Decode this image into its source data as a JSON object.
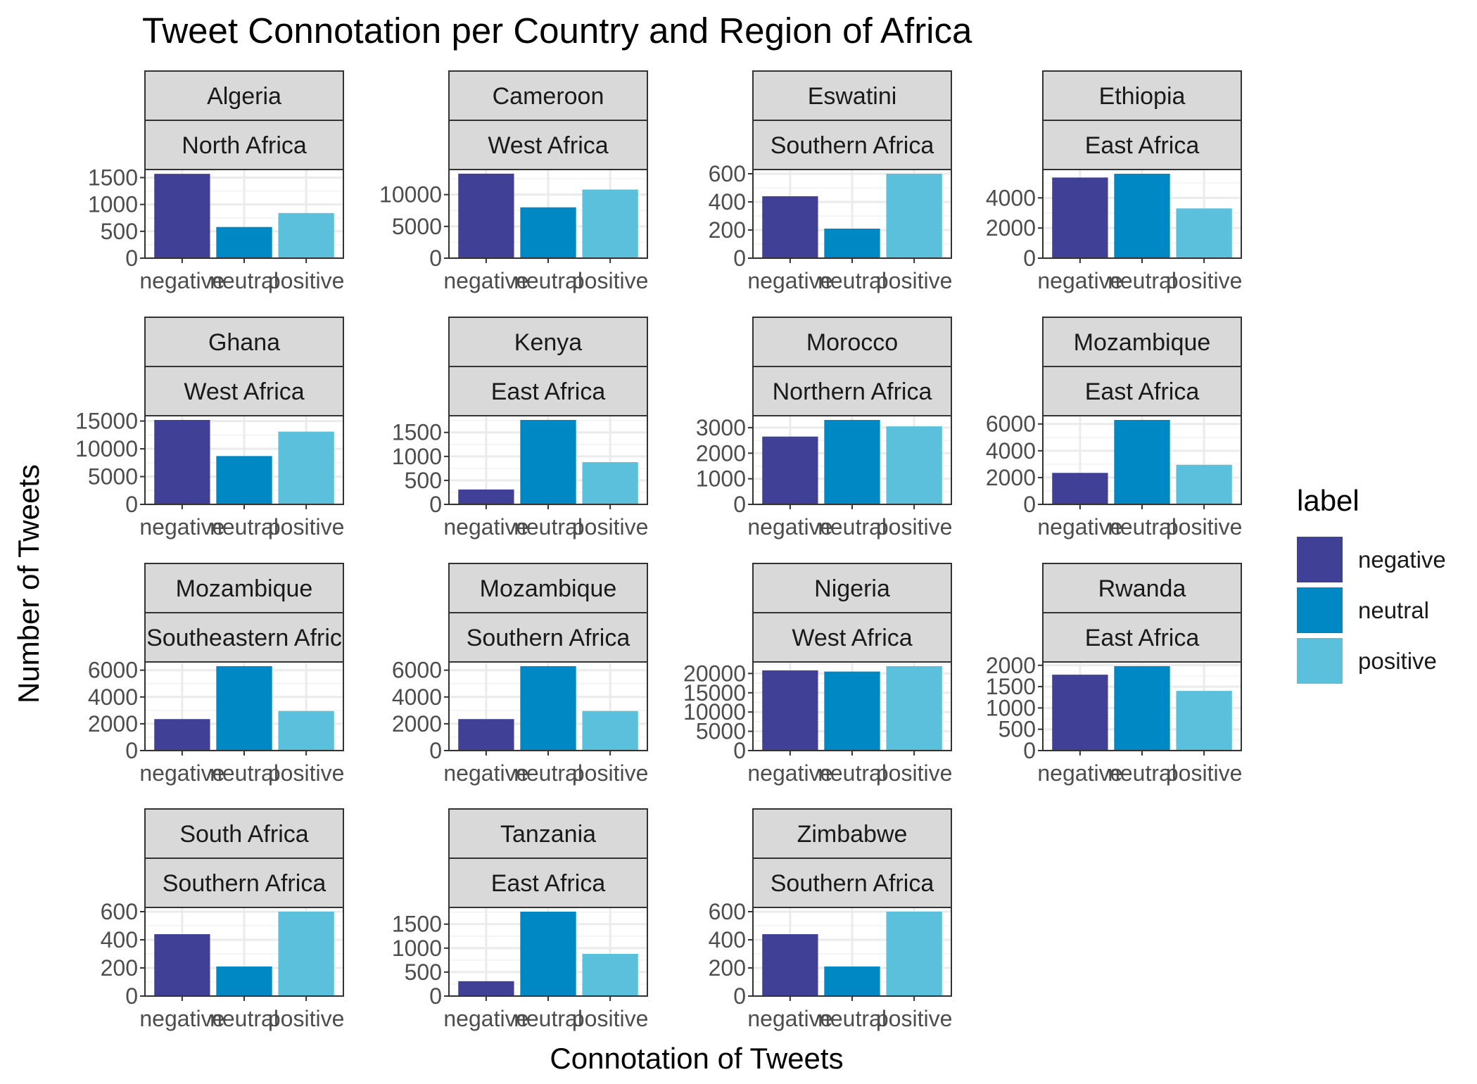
{
  "chart_data": {
    "type": "bar",
    "title": "Tweet Connotation per Country and Region of Africa",
    "xlabel": "Connotation of Tweets",
    "ylabel": "Number of Tweets",
    "categories": [
      "negative",
      "neutral",
      "positive"
    ],
    "grid": true,
    "legend": {
      "title": "label",
      "position": "right",
      "entries": [
        "negative",
        "neutral",
        "positive"
      ]
    },
    "colors": {
      "negative": "#404096",
      "neutral": "#0088c4",
      "positive": "#5bc0db"
    },
    "panels": [
      {
        "country": "Algeria",
        "region": "North Africa",
        "values": [
          1570,
          580,
          840
        ],
        "ylim": [
          0,
          1650
        ],
        "yticks": [
          0,
          500,
          1000,
          1500
        ]
      },
      {
        "country": "Cameroon",
        "region": "West Africa",
        "values": [
          13300,
          8000,
          10800
        ],
        "ylim": [
          0,
          13950
        ],
        "yticks": [
          0,
          5000,
          10000
        ]
      },
      {
        "country": "Eswatini",
        "region": "Southern Africa",
        "values": [
          440,
          210,
          600
        ],
        "ylim": [
          0,
          630
        ],
        "yticks": [
          0,
          200,
          400,
          600
        ]
      },
      {
        "country": "Ethiopia",
        "region": "East Africa",
        "values": [
          5350,
          5600,
          3300
        ],
        "ylim": [
          0,
          5880
        ],
        "yticks": [
          0,
          2000,
          4000
        ]
      },
      {
        "country": "Ghana",
        "region": "West Africa",
        "values": [
          15200,
          8700,
          13100
        ],
        "ylim": [
          0,
          15960
        ],
        "yticks": [
          0,
          5000,
          10000,
          15000
        ]
      },
      {
        "country": "Kenya",
        "region": "East Africa",
        "values": [
          310,
          1760,
          880
        ],
        "ylim": [
          0,
          1848
        ],
        "yticks": [
          0,
          500,
          1000,
          1500
        ]
      },
      {
        "country": "Morocco",
        "region": "Northern Africa",
        "values": [
          2650,
          3300,
          3050
        ],
        "ylim": [
          0,
          3465
        ],
        "yticks": [
          0,
          1000,
          2000,
          3000
        ]
      },
      {
        "country": "Mozambique",
        "region": "East Africa",
        "values": [
          2350,
          6300,
          2950
        ],
        "ylim": [
          0,
          6615
        ],
        "yticks": [
          0,
          2000,
          4000,
          6000
        ]
      },
      {
        "country": "Mozambique",
        "region": "Southeastern Afric",
        "values": [
          2350,
          6300,
          2950
        ],
        "ylim": [
          0,
          6615
        ],
        "yticks": [
          0,
          2000,
          4000,
          6000
        ]
      },
      {
        "country": "Mozambique",
        "region": "Southern Africa",
        "values": [
          2350,
          6300,
          2950
        ],
        "ylim": [
          0,
          6615
        ],
        "yticks": [
          0,
          2000,
          4000,
          6000
        ]
      },
      {
        "country": "Nigeria",
        "region": "West Africa",
        "values": [
          20800,
          20500,
          21900
        ],
        "ylim": [
          0,
          22995
        ],
        "yticks": [
          0,
          5000,
          10000,
          15000,
          20000
        ]
      },
      {
        "country": "Rwanda",
        "region": "East Africa",
        "values": [
          1780,
          1980,
          1400
        ],
        "ylim": [
          0,
          2079
        ],
        "yticks": [
          0,
          500,
          1000,
          1500,
          2000
        ]
      },
      {
        "country": "South Africa",
        "region": "Southern Africa",
        "values": [
          440,
          210,
          600
        ],
        "ylim": [
          0,
          630
        ],
        "yticks": [
          0,
          200,
          400,
          600
        ]
      },
      {
        "country": "Tanzania",
        "region": "East Africa",
        "values": [
          310,
          1760,
          880
        ],
        "ylim": [
          0,
          1848
        ],
        "yticks": [
          0,
          500,
          1000,
          1500
        ]
      },
      {
        "country": "Zimbabwe",
        "region": "Southern Africa",
        "values": [
          440,
          210,
          600
        ],
        "ylim": [
          0,
          630
        ],
        "yticks": [
          0,
          200,
          400,
          600
        ]
      }
    ]
  }
}
